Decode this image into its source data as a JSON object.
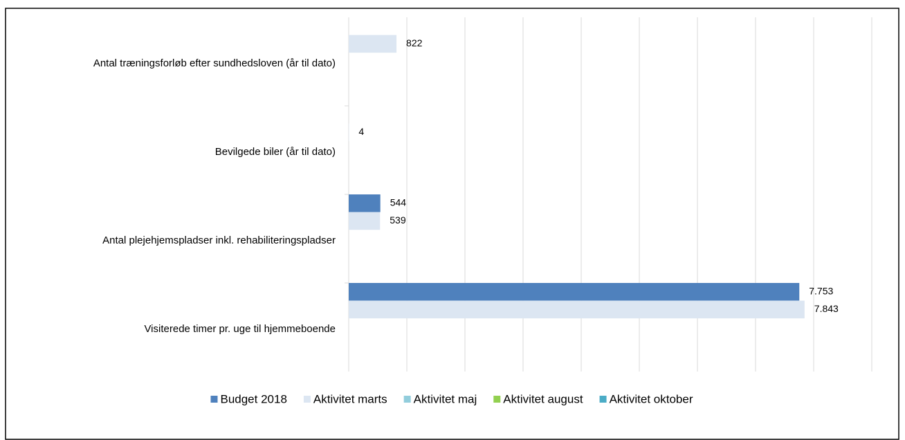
{
  "chart_data": {
    "type": "bar",
    "orientation": "horizontal",
    "categories": [
      "Antal træningsforløb efter sundhedsloven (år til dato)",
      "Bevilgede biler (år til dato)",
      "Antal plejehjemspladser inkl. rehabiliteringspladser",
      "Visiterede timer pr. uge til hjemmeboende"
    ],
    "series": [
      {
        "name": "Budget 2018",
        "color": "#4f81bd",
        "values": [
          null,
          null,
          544,
          7753
        ],
        "value_labels": [
          null,
          null,
          "544",
          "7.753"
        ]
      },
      {
        "name": "Aktivitet marts",
        "color": "#dce6f2",
        "values": [
          822,
          4,
          539,
          7843
        ],
        "value_labels": [
          "822",
          "4",
          "539",
          "7.843"
        ]
      },
      {
        "name": "Aktivitet maj",
        "color": "#92cddc",
        "values": [
          null,
          null,
          null,
          null
        ]
      },
      {
        "name": "Aktivitet august",
        "color": "#92d050",
        "values": [
          null,
          null,
          null,
          null
        ]
      },
      {
        "name": "Aktivitet oktober",
        "color": "#4bacc6",
        "values": [
          null,
          null,
          null,
          null
        ]
      }
    ],
    "xlim": [
      0,
      9000
    ],
    "xticks": [
      0,
      1000,
      2000,
      3000,
      4000,
      5000,
      6000,
      7000,
      8000,
      9000
    ],
    "grid": true,
    "legend": "bottom"
  }
}
